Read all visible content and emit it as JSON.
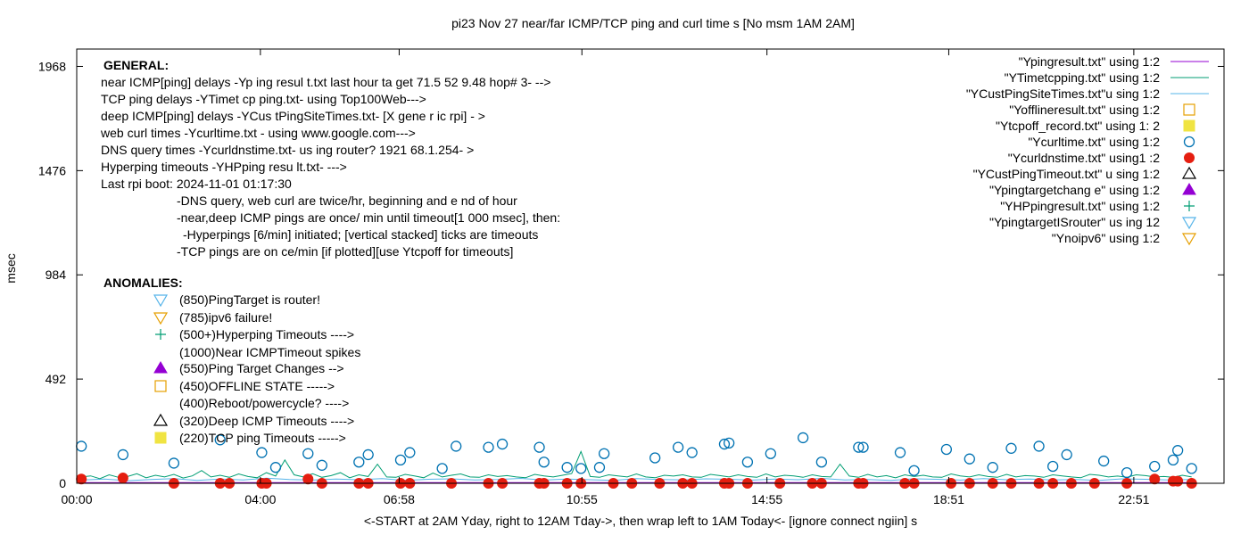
{
  "chart_data": {
    "type": "scatter",
    "title": "pi23 Nov 27  near/far ICMP/TCP ping  and curl  time  s [No msm  1AM 2AM]",
    "xlabel": "<-START at 2AM Yday, right to 12AM  Tday->, then wrap left  to 1AM Today<- [ignore  connect  ngiin] s",
    "ylabel": "msec",
    "xlim": [
      0,
      24.8
    ],
    "ylim": [
      0,
      2050
    ],
    "grid": false,
    "legend_position": "top-right",
    "x_ticks": [
      {
        "value": 0,
        "label": "00:00"
      },
      {
        "value": 3.97,
        "label": "04:00"
      },
      {
        "value": 6.97,
        "label": "06:58"
      },
      {
        "value": 10.92,
        "label": "10:55"
      },
      {
        "value": 14.92,
        "label": "14:55"
      },
      {
        "value": 18.85,
        "label": "18:51"
      },
      {
        "value": 22.85,
        "label": "22:51"
      }
    ],
    "y_ticks": [
      {
        "value": 0,
        "label": "0"
      },
      {
        "value": 492,
        "label": "492"
      },
      {
        "value": 984,
        "label": "984"
      },
      {
        "value": 1476,
        "label": "1476"
      },
      {
        "value": 1968,
        "label": "1968"
      }
    ],
    "legend": [
      {
        "label": "\"Ypingresult.txt\" using 1:2",
        "marker": "line",
        "color": "#9400d3"
      },
      {
        "label": "\"YTimetcpping.txt\" using 1:2",
        "marker": "line",
        "color": "#009e73"
      },
      {
        "label": "\"YCustPingSiteTimes.txt\"u sing 1:2",
        "marker": "line",
        "color": "#56b4e9"
      },
      {
        "label": "\"Yofflineresult.txt\" using 1:2",
        "marker": "open-square",
        "color": "#e69f00"
      },
      {
        "label": "\"Ytcpoff_record.txt\" using 1: 2",
        "marker": "filled-square",
        "color": "#f0e442"
      },
      {
        "label": "\"Ycurltime.txt\" using 1:2",
        "marker": "open-circle",
        "color": "#0072b2"
      },
      {
        "label": "\"Ycurldnstime.txt\" using1 :2",
        "marker": "filled-circle",
        "color": "#e51e10"
      },
      {
        "label": "\"YCustPingTimeout.txt\" u sing  1:2",
        "marker": "open-triangle",
        "color": "#000000"
      },
      {
        "label": "\"Ypingtargetchang e\" using 1:2",
        "marker": "filled-triangle",
        "color": "#9400d3"
      },
      {
        "label": "\"YHPpingresult.txt\" using 1:2",
        "marker": "plus",
        "color": "#009e73"
      },
      {
        "label": "\"YpingtargetISrouter\" us ing 12",
        "marker": "open-down-triangle",
        "color": "#56b4e9"
      },
      {
        "label": "\"Ynoipv6\" using 1:2",
        "marker": "open-down-triangle",
        "color": "#e69f00"
      }
    ],
    "notes_general_heading": "GENERAL:",
    "notes_general": [
      "near ICMP[ping] delays -Yp ing resul t.txt last hour ta get 71.5  52  9.48 hop#  3- -->",
      "TCP ping delays -YTimet cp ping.txt- using Top100Web--->",
      "deep ICMP[ping] delays -YCus tPingSiteTimes.txt- [X gene r ic rpi] - >",
      "web curl times -Ycurltime.txt - using www.google.com--->",
      "DNS query times -Ycurldnstime.txt- us ing router?   1921 68.1.254- >",
      "Hyperping timeouts -YHPping resu lt.txt- --->",
      "Last rpi boot: 2024-11-01  01:17:30",
      "-DNS query, web curl are twice/hr, beginning and e  nd of hour",
      "-near,deep ICMP pings are once/ min until timeout[1  000 msec], then:",
      "-Hyperpings [6/min] initiated; [vertical stacked] ticks are timeouts",
      "-TCP pings  are on ce/min  [if plotted][use Ytcpoff for timeouts]"
    ],
    "notes_anomalies_heading": "ANOMALIES:",
    "notes_anomalies": [
      {
        "marker": "open-down-triangle",
        "color": "#56b4e9",
        "text": "(850)PingTarget is  router!"
      },
      {
        "marker": "open-down-triangle",
        "color": "#e69f00",
        "text": "(785)ipv6 failure!"
      },
      {
        "marker": "plus",
        "color": "#009e73",
        "text": "(500+)Hyperping Timeouts  ---->"
      },
      {
        "marker": "none",
        "color": "#000000",
        "text": "(1000)Near ICMPTimeout spikes"
      },
      {
        "marker": "filled-triangle",
        "color": "#9400d3",
        "text": "(550)Ping Target Changes -->"
      },
      {
        "marker": "open-square",
        "color": "#e69f00",
        "text": "(450)OFFLINE STATE ----->"
      },
      {
        "marker": "none",
        "color": "#000000",
        "text": "(400)Reboot/powercycle?  ---->"
      },
      {
        "marker": "open-triangle",
        "color": "#000000",
        "text": "(320)Deep ICMP Timeouts ---->"
      },
      {
        "marker": "filled-square",
        "color": "#f0e442",
        "text": "(220)TCP ping Timeouts  ----->"
      }
    ],
    "series": [
      {
        "name": "\"Ycurltime.txt\" using 1:2",
        "marker": "open-circle",
        "color": "#0072b2",
        "x": [
          0.1,
          1.0,
          2.1,
          3.1,
          4.0,
          4.3,
          5.0,
          5.3,
          6.1,
          6.3,
          7.0,
          7.2,
          7.9,
          8.2,
          8.9,
          9.2,
          10.0,
          10.1,
          10.6,
          10.9,
          11.3,
          11.4,
          12.5,
          13.0,
          13.3,
          14.0,
          14.1,
          14.5,
          15.0,
          15.7,
          16.1,
          16.9,
          17.0,
          17.8,
          18.1,
          18.8,
          19.3,
          19.8,
          20.2,
          20.8,
          21.1,
          21.4,
          22.2,
          22.7,
          23.3,
          23.7,
          23.8,
          24.1
        ],
        "y": [
          175,
          135,
          95,
          205,
          145,
          75,
          140,
          85,
          100,
          135,
          110,
          145,
          70,
          175,
          170,
          185,
          170,
          100,
          75,
          70,
          75,
          140,
          120,
          170,
          145,
          185,
          190,
          100,
          140,
          215,
          100,
          170,
          170,
          145,
          60,
          160,
          115,
          75,
          165,
          175,
          80,
          135,
          105,
          50,
          80,
          110,
          155,
          70
        ]
      },
      {
        "name": "\"Ycurldnstime.txt\" using1 :2",
        "marker": "filled-circle",
        "color": "#e51e10",
        "x": [
          0.1,
          1.0,
          2.1,
          3.1,
          3.3,
          4.0,
          4.1,
          5.0,
          5.3,
          6.1,
          6.3,
          7.0,
          7.2,
          8.1,
          8.9,
          9.2,
          10.0,
          10.1,
          10.6,
          10.9,
          11.6,
          12.0,
          12.6,
          13.1,
          13.3,
          14.0,
          14.1,
          14.5,
          15.2,
          15.9,
          16.1,
          16.9,
          17.0,
          17.9,
          18.1,
          18.9,
          19.3,
          19.8,
          20.2,
          20.8,
          21.1,
          21.5,
          22.0,
          22.7,
          23.3,
          23.7,
          23.8,
          24.1
        ],
        "y": [
          20,
          25,
          0,
          0,
          0,
          0,
          0,
          20,
          0,
          0,
          0,
          0,
          0,
          0,
          0,
          0,
          0,
          0,
          0,
          0,
          0,
          0,
          0,
          0,
          0,
          0,
          0,
          0,
          0,
          0,
          0,
          0,
          0,
          0,
          0,
          0,
          0,
          0,
          0,
          0,
          0,
          0,
          0,
          0,
          20,
          10,
          10,
          0
        ]
      },
      {
        "name": "\"YTimetcpping.txt\" using 1:2",
        "marker": "line",
        "color": "#009e73",
        "x": [
          0.1,
          0.3,
          0.5,
          0.7,
          0.9,
          1.1,
          1.3,
          1.5,
          1.7,
          1.9,
          2.1,
          2.3,
          2.5,
          2.7,
          2.9,
          3.1,
          3.3,
          3.5,
          3.7,
          3.9,
          4.1,
          4.3,
          4.5,
          4.7,
          4.9,
          5.1,
          5.3,
          5.5,
          5.7,
          5.9,
          6.1,
          6.3,
          6.5,
          6.7,
          6.9,
          7.1,
          7.3,
          7.5,
          7.7,
          7.9,
          8.1,
          8.3,
          8.5,
          8.7,
          8.9,
          9.1,
          9.3,
          9.5,
          9.7,
          9.9,
          10.1,
          10.3,
          10.5,
          10.7,
          10.9,
          11.1,
          11.3,
          11.5,
          11.7,
          11.9,
          12.1,
          12.3,
          12.5,
          12.7,
          12.9,
          13.1,
          13.3,
          13.5,
          13.7,
          13.9,
          14.1,
          14.3,
          14.5,
          14.7,
          14.9,
          15.1,
          15.3,
          15.5,
          15.7,
          15.9,
          16.1,
          16.3,
          16.5,
          16.7,
          16.9,
          17.1,
          17.3,
          17.5,
          17.7,
          17.9,
          18.1,
          18.3,
          18.5,
          18.7,
          18.9,
          19.1,
          19.3,
          19.5,
          19.7,
          19.9,
          20.1,
          20.3,
          20.5,
          20.7,
          20.9,
          21.1,
          21.3,
          21.5,
          21.7,
          21.9,
          22.1,
          22.3,
          22.5,
          22.7,
          22.9,
          23.1,
          23.3,
          23.5,
          23.7,
          23.9,
          24.1
        ],
        "y": [
          30,
          35,
          22,
          40,
          28,
          32,
          45,
          26,
          38,
          30,
          42,
          25,
          35,
          60,
          30,
          38,
          28,
          44,
          32,
          26,
          50,
          34,
          110,
          40,
          30,
          45,
          28,
          36,
          50,
          26,
          40,
          32,
          90,
          30,
          28,
          42,
          35,
          26,
          48,
          30,
          38,
          44,
          30,
          28,
          40,
          32,
          36,
          30,
          26,
          42,
          35,
          30,
          38,
          46,
          150,
          32,
          28,
          40,
          35,
          30,
          44,
          30,
          26,
          38,
          34,
          40,
          30,
          28,
          42,
          36,
          30,
          40,
          32,
          28,
          44,
          30,
          38,
          35,
          28,
          40,
          32,
          30,
          90,
          34,
          28,
          42,
          30,
          36,
          26,
          40,
          32,
          38,
          30,
          28,
          44,
          35,
          30,
          40,
          32,
          28,
          42,
          30,
          36,
          34,
          28,
          40,
          35,
          30,
          26,
          42,
          38,
          30,
          34,
          28,
          40,
          36,
          30,
          32,
          28,
          38,
          30
        ]
      },
      {
        "name": "\"YCustPingSiteTimes.txt\"u sing 1:2",
        "marker": "line",
        "color": "#56b4e9",
        "x": [
          0.1,
          0.6,
          1.1,
          1.6,
          2.1,
          2.6,
          3.1,
          3.6,
          4.1,
          4.6,
          5.1,
          5.6,
          6.1,
          6.6,
          7.1,
          7.6,
          8.1,
          8.6,
          9.1,
          9.6,
          10.1,
          10.6,
          11.1,
          11.6,
          12.1,
          12.6,
          13.1,
          13.6,
          14.1,
          14.6,
          15.1,
          15.6,
          16.1,
          16.6,
          17.1,
          17.6,
          18.1,
          18.6,
          19.1,
          19.6,
          20.1,
          20.6,
          21.1,
          21.6,
          22.1,
          22.6,
          23.1,
          23.6,
          24.1
        ],
        "y": [
          15,
          20,
          12,
          18,
          22,
          14,
          20,
          16,
          24,
          18,
          15,
          20,
          17,
          22,
          14,
          19,
          21,
          16,
          18,
          23,
          15,
          20,
          17,
          14,
          22,
          18,
          16,
          21,
          19,
          15,
          20,
          17,
          23,
          16,
          18,
          14,
          21,
          19,
          15,
          22,
          17,
          20,
          16,
          18,
          14,
          21,
          19,
          16,
          18
        ]
      },
      {
        "name": "\"Ypingresult.txt\" using 1:2",
        "marker": "line",
        "color": "#9400d3",
        "x": [
          0.1,
          2.0,
          4.0,
          6.0,
          8.0,
          10.0,
          12.0,
          14.0,
          16.0,
          18.0,
          20.0,
          22.0,
          24.1
        ],
        "y": [
          3,
          3,
          3,
          3,
          3,
          3,
          3,
          3,
          3,
          3,
          3,
          3,
          3
        ]
      }
    ]
  }
}
